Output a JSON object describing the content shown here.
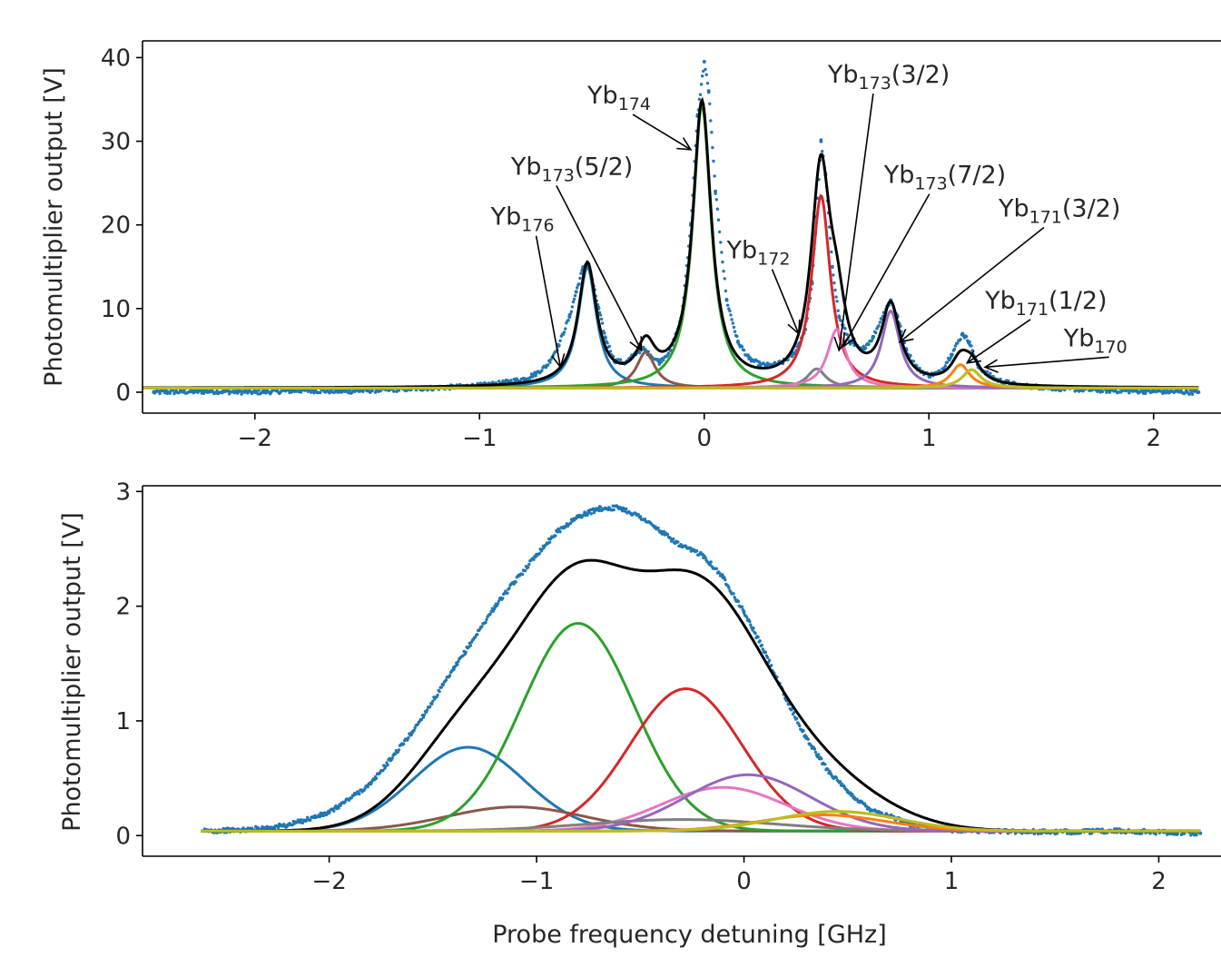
{
  "chart_data": [
    {
      "type": "line",
      "panel": "top",
      "xlabel": "",
      "ylabel": "Photomultiplier output [V]",
      "xlim": [
        -2.5,
        2.3
      ],
      "ylim": [
        -2.5,
        42
      ],
      "xticks": [
        -2,
        -1,
        0,
        1,
        2
      ],
      "yticks": [
        0,
        10,
        20,
        30,
        40
      ],
      "xtick_labels": [
        "−2",
        "−1",
        "0",
        "1",
        "2"
      ],
      "ytick_labels": [
        "0",
        "10",
        "20",
        "30",
        "40"
      ],
      "grid": false,
      "baseline": 0.5,
      "measured_points": {
        "name": "",
        "color": "#1f77b4",
        "x": [
          -2.45,
          -2.2,
          -2.0,
          -1.8,
          -1.6,
          -1.4,
          -1.2,
          -1.0,
          -0.9,
          -0.8,
          -0.75,
          -0.7,
          -0.65,
          -0.6,
          -0.57,
          -0.54,
          -0.52,
          -0.5,
          -0.47,
          -0.44,
          -0.4,
          -0.35,
          -0.3,
          -0.27,
          -0.24,
          -0.2,
          -0.15,
          -0.1,
          -0.06,
          -0.03,
          0.0,
          0.02,
          0.05,
          0.1,
          0.15,
          0.2,
          0.25,
          0.3,
          0.35,
          0.4,
          0.45,
          0.48,
          0.5,
          0.52,
          0.54,
          0.57,
          0.6,
          0.65,
          0.7,
          0.75,
          0.8,
          0.83,
          0.86,
          0.9,
          0.95,
          1.0,
          1.05,
          1.1,
          1.15,
          1.18,
          1.22,
          1.3,
          1.4,
          1.6,
          1.8,
          2.0,
          2.2
        ],
        "y": [
          0.0,
          0.1,
          0.0,
          0.2,
          0.1,
          0.3,
          0.5,
          0.8,
          1.1,
          1.6,
          2.2,
          3.2,
          5.5,
          9.0,
          12.0,
          14.8,
          15.5,
          13.5,
          10.0,
          6.5,
          3.8,
          3.5,
          4.8,
          5.2,
          4.4,
          3.6,
          5.0,
          9.0,
          20.0,
          33.0,
          39.5,
          36.0,
          24.0,
          11.0,
          6.0,
          4.0,
          3.3,
          3.2,
          3.6,
          4.6,
          7.5,
          13.0,
          21.0,
          30.0,
          26.0,
          15.0,
          9.0,
          6.0,
          5.0,
          6.5,
          9.5,
          11.0,
          9.0,
          5.0,
          2.8,
          2.0,
          2.4,
          4.5,
          7.0,
          6.0,
          3.0,
          1.5,
          0.8,
          0.4,
          0.2,
          0.1,
          0.0
        ]
      },
      "series": [
        {
          "name": "",
          "color": "#1f77b4",
          "center": -0.52,
          "amplitude": 14.5,
          "width": 0.05
        },
        {
          "name": "",
          "color": "#8c564b",
          "center": -0.26,
          "amplitude": 4.3,
          "width": 0.05
        },
        {
          "name": "",
          "color": "#2ca02c",
          "center": -0.01,
          "amplitude": 33.8,
          "width": 0.05
        },
        {
          "name": "",
          "color": "#7f7f7f",
          "center": 0.5,
          "amplitude": 2.3,
          "width": 0.05
        },
        {
          "name": "",
          "color": "#d62728",
          "center": 0.52,
          "amplitude": 23.0,
          "width": 0.05
        },
        {
          "name": "",
          "color": "#e377c2",
          "center": 0.59,
          "amplitude": 7.0,
          "width": 0.05
        },
        {
          "name": "",
          "color": "#9467bd",
          "center": 0.83,
          "amplitude": 9.2,
          "width": 0.05
        },
        {
          "name": "",
          "color": "#ff7f0e",
          "center": 1.14,
          "amplitude": 2.8,
          "width": 0.05
        },
        {
          "name": "",
          "color": "#bcbd22",
          "center": 1.19,
          "amplitude": 2.2,
          "width": 0.05
        }
      ],
      "total_fit": {
        "name": "",
        "color": "#000000"
      },
      "annotations": [
        {
          "base": "Yb",
          "sub": "176",
          "tail": "",
          "text_x": -0.95,
          "text_y": 20.0,
          "arrow_x": -0.64,
          "arrow_y": 3.0
        },
        {
          "base": "Yb",
          "sub": "173",
          "tail": "(5/2)",
          "text_x": -0.86,
          "text_y": 26.0,
          "arrow_x": -0.28,
          "arrow_y": 5.0
        },
        {
          "base": "Yb",
          "sub": "174",
          "tail": "",
          "text_x": -0.52,
          "text_y": 34.5,
          "arrow_x": -0.06,
          "arrow_y": 29.0
        },
        {
          "base": "Yb",
          "sub": "173",
          "tail": "(3/2)",
          "text_x": 0.55,
          "text_y": 37.0,
          "arrow_x": 0.6,
          "arrow_y": 5.0
        },
        {
          "base": "Yb",
          "sub": "173",
          "tail": "(7/2)",
          "text_x": 0.8,
          "text_y": 25.0,
          "arrow_x": 0.62,
          "arrow_y": 5.5
        },
        {
          "base": "Yb",
          "sub": "171",
          "tail": "(3/2)",
          "text_x": 1.31,
          "text_y": 21.0,
          "arrow_x": 0.87,
          "arrow_y": 6.0
        },
        {
          "base": "Yb",
          "sub": "172",
          "tail": "",
          "text_x": 0.1,
          "text_y": 16.0,
          "arrow_x": 0.42,
          "arrow_y": 7.0
        },
        {
          "base": "Yb",
          "sub": "171",
          "tail": "(1/2)",
          "text_x": 1.25,
          "text_y": 10.0,
          "arrow_x": 1.17,
          "arrow_y": 3.5
        },
        {
          "base": "Yb",
          "sub": "170",
          "tail": "",
          "text_x": 1.6,
          "text_y": 5.5,
          "arrow_x": 1.25,
          "arrow_y": 3.0
        }
      ]
    },
    {
      "type": "line",
      "panel": "bottom",
      "xlabel": "Probe frequency detuning [GHz]",
      "ylabel": "Photomultiplier output [V]",
      "xlim": [
        -2.9,
        2.3
      ],
      "ylim": [
        -0.18,
        3.05
      ],
      "xticks": [
        -2,
        -1,
        0,
        1,
        2
      ],
      "yticks": [
        0,
        1,
        2,
        3
      ],
      "xtick_labels": [
        "−2",
        "−1",
        "0",
        "1",
        "2"
      ],
      "ytick_labels": [
        "0",
        "1",
        "2",
        "3"
      ],
      "grid": false,
      "baseline": 0.04,
      "measured_points": {
        "name": "",
        "color": "#1f77b4",
        "x": [
          -2.6,
          -2.4,
          -2.2,
          -2.0,
          -1.8,
          -1.6,
          -1.4,
          -1.2,
          -1.0,
          -0.9,
          -0.8,
          -0.7,
          -0.6,
          -0.5,
          -0.4,
          -0.3,
          -0.2,
          -0.1,
          0.0,
          0.1,
          0.2,
          0.3,
          0.4,
          0.5,
          0.6,
          0.8,
          1.0,
          1.2,
          1.5,
          1.8,
          2.2
        ],
        "y": [
          0.04,
          0.05,
          0.09,
          0.2,
          0.45,
          0.9,
          1.45,
          2.0,
          2.45,
          2.65,
          2.78,
          2.85,
          2.86,
          2.78,
          2.65,
          2.52,
          2.45,
          2.25,
          1.95,
          1.6,
          1.2,
          0.85,
          0.58,
          0.38,
          0.24,
          0.1,
          0.05,
          0.04,
          0.03,
          0.04,
          0.02
        ]
      },
      "series": [
        {
          "name": "",
          "color": "#1f77b4",
          "center": -1.33,
          "amplitude": 0.73,
          "width": 0.27
        },
        {
          "name": "",
          "color": "#8c564b",
          "center": -1.1,
          "amplitude": 0.21,
          "width": 0.33
        },
        {
          "name": "",
          "color": "#2ca02c",
          "center": -0.8,
          "amplitude": 1.81,
          "width": 0.27
        },
        {
          "name": "",
          "color": "#d62728",
          "center": -0.28,
          "amplitude": 1.24,
          "width": 0.27
        },
        {
          "name": "",
          "color": "#e377c2",
          "center": -0.1,
          "amplitude": 0.38,
          "width": 0.3
        },
        {
          "name": "",
          "color": "#7f7f7f",
          "center": -0.3,
          "amplitude": 0.1,
          "width": 0.45
        },
        {
          "name": "",
          "color": "#9467bd",
          "center": 0.02,
          "amplitude": 0.49,
          "width": 0.3
        },
        {
          "name": "",
          "color": "#ff7f0e",
          "center": 0.38,
          "amplitude": 0.14,
          "width": 0.3
        },
        {
          "name": "",
          "color": "#bcbd22",
          "center": 0.45,
          "amplitude": 0.17,
          "width": 0.3
        }
      ],
      "total_fit": {
        "name": "",
        "color": "#000000"
      }
    }
  ]
}
